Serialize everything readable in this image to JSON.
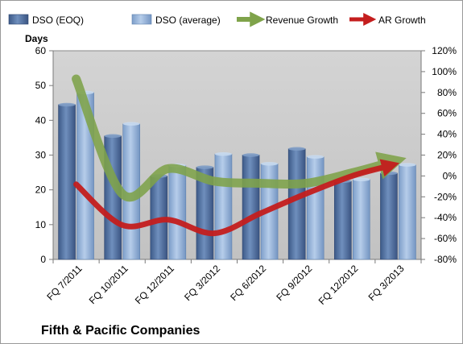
{
  "chart_data": {
    "type": "bar",
    "title": "Fifth & Pacific Companies",
    "y_left_label": "Days",
    "y_left_lim": [
      0,
      60
    ],
    "y_left_ticks": [
      0,
      10,
      20,
      30,
      40,
      50,
      60
    ],
    "y_right_lim": [
      -80,
      120
    ],
    "y_right_ticks": [
      "-80%",
      "-60%",
      "-40%",
      "-20%",
      "0%",
      "20%",
      "40%",
      "60%",
      "80%",
      "100%",
      "120%"
    ],
    "categories": [
      "FQ 7/2011",
      "FQ 10/2011",
      "FQ 12/2011",
      "FQ 3/2012",
      "FQ 6/2012",
      "FQ 9/2012",
      "FQ 12/2012",
      "FQ 3/2013"
    ],
    "bar_series": [
      {
        "name": "DSO (EOQ)",
        "axis": "left",
        "color": "#4f6f9e",
        "values": [
          44.5,
          35.5,
          24,
          26.5,
          30,
          31.8,
          22.5,
          24.8
        ]
      },
      {
        "name": "DSO (average)",
        "axis": "left",
        "color": "#8fb0d8",
        "values": [
          48,
          39,
          27,
          30.3,
          27.5,
          29.5,
          23,
          27.2
        ]
      }
    ],
    "line_series": [
      {
        "name": "Revenue Growth",
        "axis": "right",
        "unit": "%",
        "color": "#7fa34a",
        "values": [
          93,
          -17,
          7,
          -5,
          -7,
          -7,
          3,
          15
        ]
      },
      {
        "name": "AR Growth",
        "axis": "right",
        "unit": "%",
        "color": "#c41e1e",
        "values": [
          -8,
          -47,
          -42,
          -55,
          -36,
          -17,
          0,
          12
        ]
      }
    ],
    "grid": false,
    "legend_position": "top"
  }
}
